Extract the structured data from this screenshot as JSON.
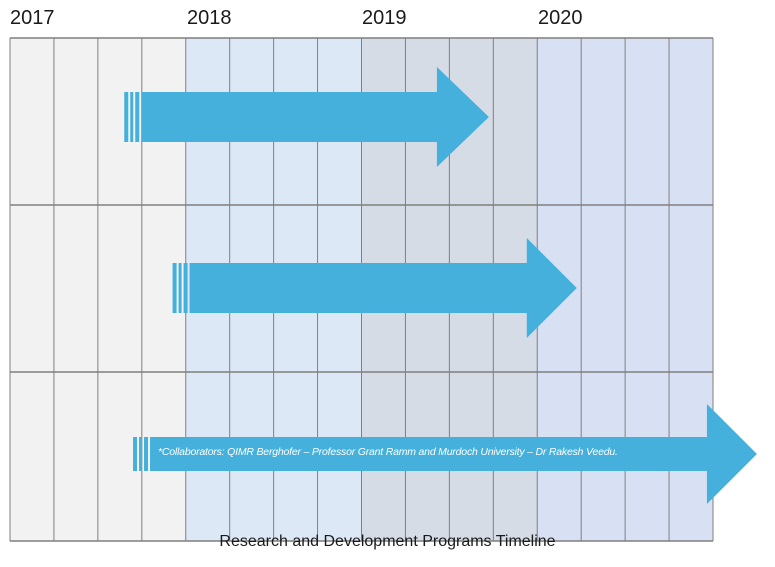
{
  "years": [
    "2017",
    "2018",
    "2019",
    "2020"
  ],
  "colors": {
    "band_2017": "#f2f2f2",
    "band_2018": "#dde8f6",
    "band_2019": "#d5dce6",
    "band_2020": "#d8e1f3",
    "grid_line": "#7f7f7f",
    "arrow": "#45b0db"
  },
  "programs": [
    {
      "start_quarter": 2.6,
      "end_quarter": 10.9
    },
    {
      "start_quarter": 3.7,
      "end_quarter": 12.9
    },
    {
      "start_quarter": 2.8,
      "end_quarter": 17.0
    }
  ],
  "note": "*Collaborators:  QIMR Berghofer – Professor Grant Ramm and Murdoch University – Dr Rakesh Veedu.",
  "caption": "Research and Development Programs Timeline"
}
